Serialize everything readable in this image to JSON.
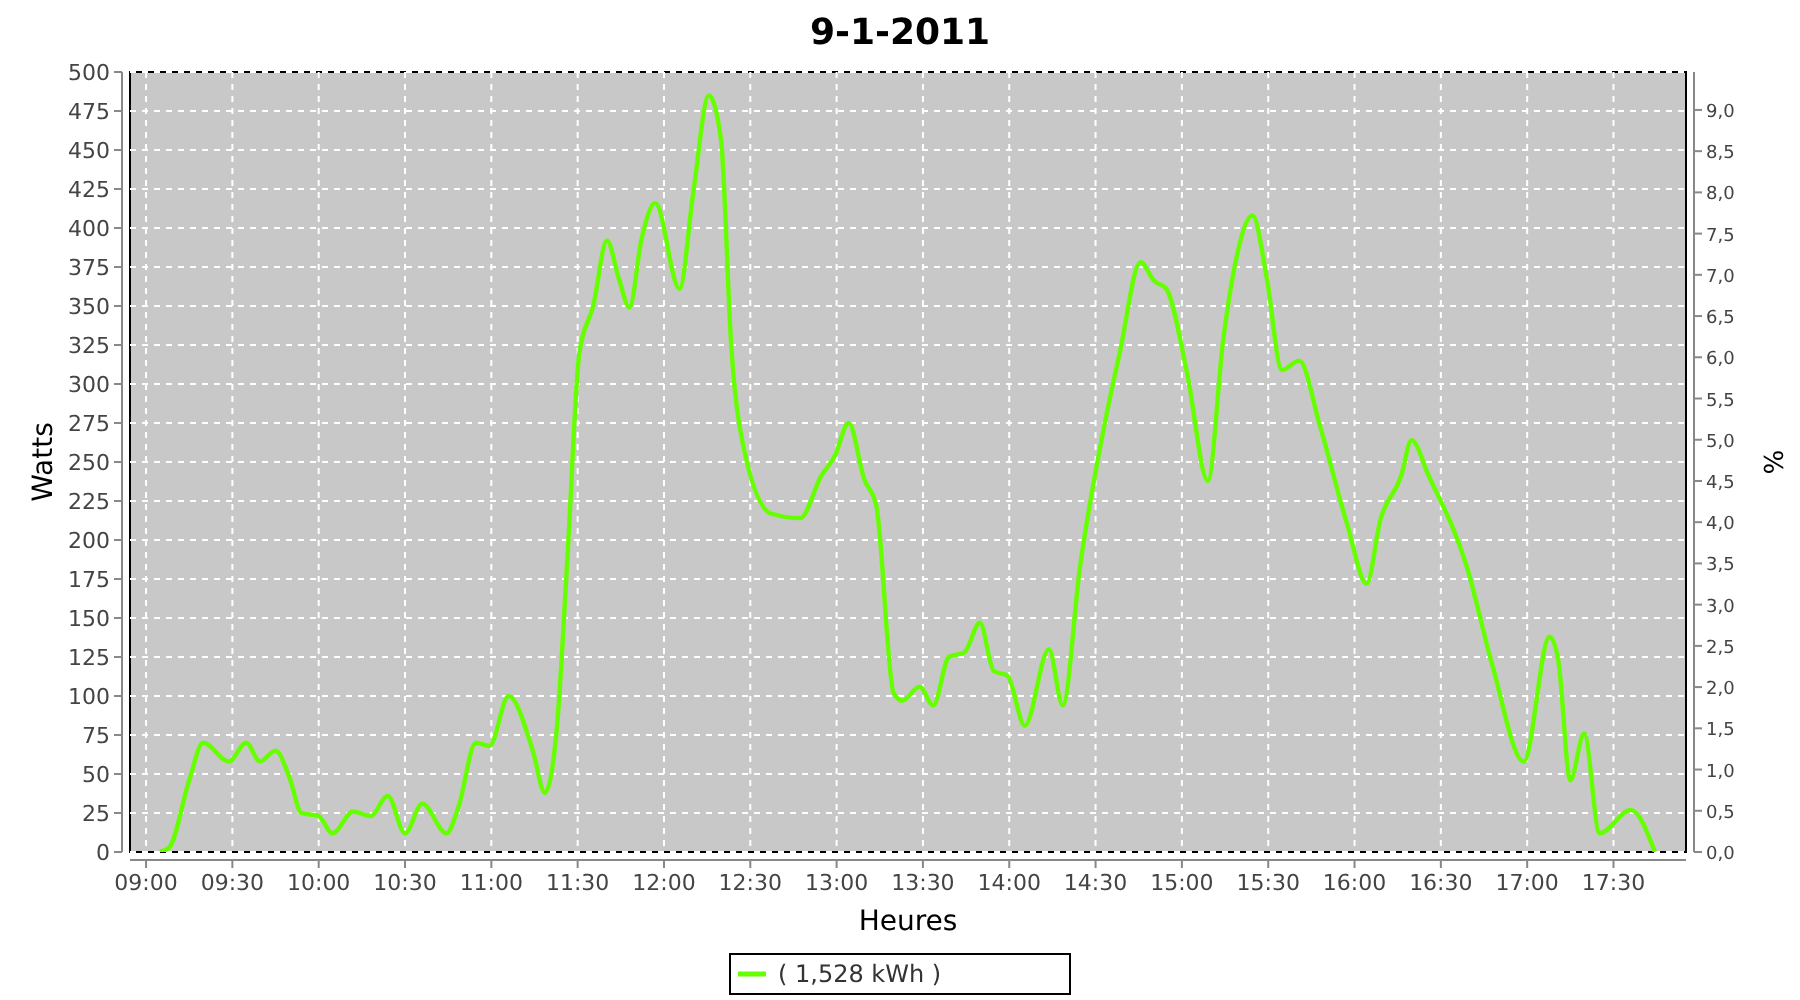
{
  "chart_data": {
    "type": "line",
    "title": "9-1-2011",
    "xlabel": "Heures",
    "ylabel": "Watts",
    "y2label": "%",
    "x": [
      9.08,
      9.135,
      9.25,
      9.33,
      9.48,
      9.58,
      9.66,
      9.75,
      9.83,
      9.9,
      10.0,
      10.08,
      10.2,
      10.3,
      10.4,
      10.5,
      10.6,
      10.74,
      10.81,
      10.91,
      10.99,
      11.1,
      11.24,
      11.31,
      11.38,
      11.44,
      11.51,
      11.59,
      11.67,
      11.74,
      11.8,
      11.87,
      11.95,
      12.09,
      12.17,
      12.26,
      12.33,
      12.39,
      12.46,
      12.62,
      12.79,
      12.91,
      12.99,
      13.07,
      13.16,
      13.23,
      13.33,
      13.38,
      13.48,
      13.56,
      13.65,
      13.74,
      13.83,
      13.91,
      13.99,
      14.09,
      14.23,
      14.31,
      14.41,
      14.55,
      14.64,
      14.76,
      14.84,
      14.91,
      15.03,
      15.15,
      15.24,
      15.3,
      15.41,
      15.49,
      15.58,
      15.68,
      15.8,
      15.96,
      16.07,
      16.15,
      16.27,
      16.33,
      16.43,
      16.65,
      16.8,
      16.98,
      17.13,
      17.18,
      17.25,
      17.33,
      17.42,
      17.6,
      17.74
    ],
    "series": [
      {
        "name": "( 1,528 kWh )",
        "color": "#66ff00",
        "values": [
          0,
          3,
          46,
          70,
          58,
          70,
          58,
          65,
          48,
          25,
          23,
          12,
          26,
          23,
          36,
          12,
          31,
          12,
          29,
          70,
          68,
          100,
          65,
          38,
          80,
          187,
          320,
          350,
          392,
          367,
          349,
          393,
          416,
          361,
          423,
          485,
          457,
          324,
          260,
          217,
          214,
          241,
          254,
          275,
          239,
          222,
          102,
          97,
          106,
          94,
          125,
          128,
          147,
          116,
          113,
          81,
          130,
          94,
          183,
          273,
          320,
          378,
          366,
          361,
          307,
          238,
          329,
          372,
          408,
          369,
          309,
          315,
          273,
          209,
          172,
          213,
          241,
          264,
          241,
          183,
          119,
          58,
          138,
          123,
          46,
          76,
          12,
          27,
          0
        ]
      }
    ],
    "xlim": [
      8.907,
      17.92
    ],
    "xticks": [
      {
        "value": 9,
        "label": "09:00"
      },
      {
        "value": 9.5,
        "label": "09:30"
      },
      {
        "value": 10,
        "label": "10:00"
      },
      {
        "value": 10.5,
        "label": "10:30"
      },
      {
        "value": 11,
        "label": "11:00"
      },
      {
        "value": 11.5,
        "label": "11:30"
      },
      {
        "value": 12,
        "label": "12:00"
      },
      {
        "value": 12.5,
        "label": "12:30"
      },
      {
        "value": 13,
        "label": "13:00"
      },
      {
        "value": 13.5,
        "label": "13:30"
      },
      {
        "value": 14,
        "label": "14:00"
      },
      {
        "value": 14.5,
        "label": "14:30"
      },
      {
        "value": 15,
        "label": "15:00"
      },
      {
        "value": 15.5,
        "label": "15:30"
      },
      {
        "value": 16,
        "label": "16:00"
      },
      {
        "value": 16.5,
        "label": "16:30"
      },
      {
        "value": 17,
        "label": "17:00"
      },
      {
        "value": 17.5,
        "label": "17:30"
      }
    ],
    "ylim": [
      0,
      500
    ],
    "yticks": [
      0,
      25,
      50,
      75,
      100,
      125,
      150,
      175,
      200,
      225,
      250,
      275,
      300,
      325,
      350,
      375,
      400,
      425,
      450,
      475,
      500
    ],
    "y2lim": [
      0,
      9.46
    ],
    "y2ticks": [
      {
        "value": 0,
        "label": "0,0"
      },
      {
        "value": 0.5,
        "label": "0,5"
      },
      {
        "value": 1,
        "label": "1,0"
      },
      {
        "value": 1.5,
        "label": "1,5"
      },
      {
        "value": 2,
        "label": "2,0"
      },
      {
        "value": 2.5,
        "label": "2,5"
      },
      {
        "value": 3,
        "label": "3,0"
      },
      {
        "value": 3.5,
        "label": "3,5"
      },
      {
        "value": 4,
        "label": "4,0"
      },
      {
        "value": 4.5,
        "label": "4,5"
      },
      {
        "value": 5,
        "label": "5,0"
      },
      {
        "value": 5.5,
        "label": "5,5"
      },
      {
        "value": 6,
        "label": "6,0"
      },
      {
        "value": 6.5,
        "label": "6,5"
      },
      {
        "value": 7,
        "label": "7,0"
      },
      {
        "value": 7.5,
        "label": "7,5"
      },
      {
        "value": 8,
        "label": "8,0"
      },
      {
        "value": 8.5,
        "label": "8,5"
      },
      {
        "value": 9,
        "label": "9,0"
      }
    ],
    "grid": true,
    "legend": "bottom",
    "line_style": "solid"
  }
}
